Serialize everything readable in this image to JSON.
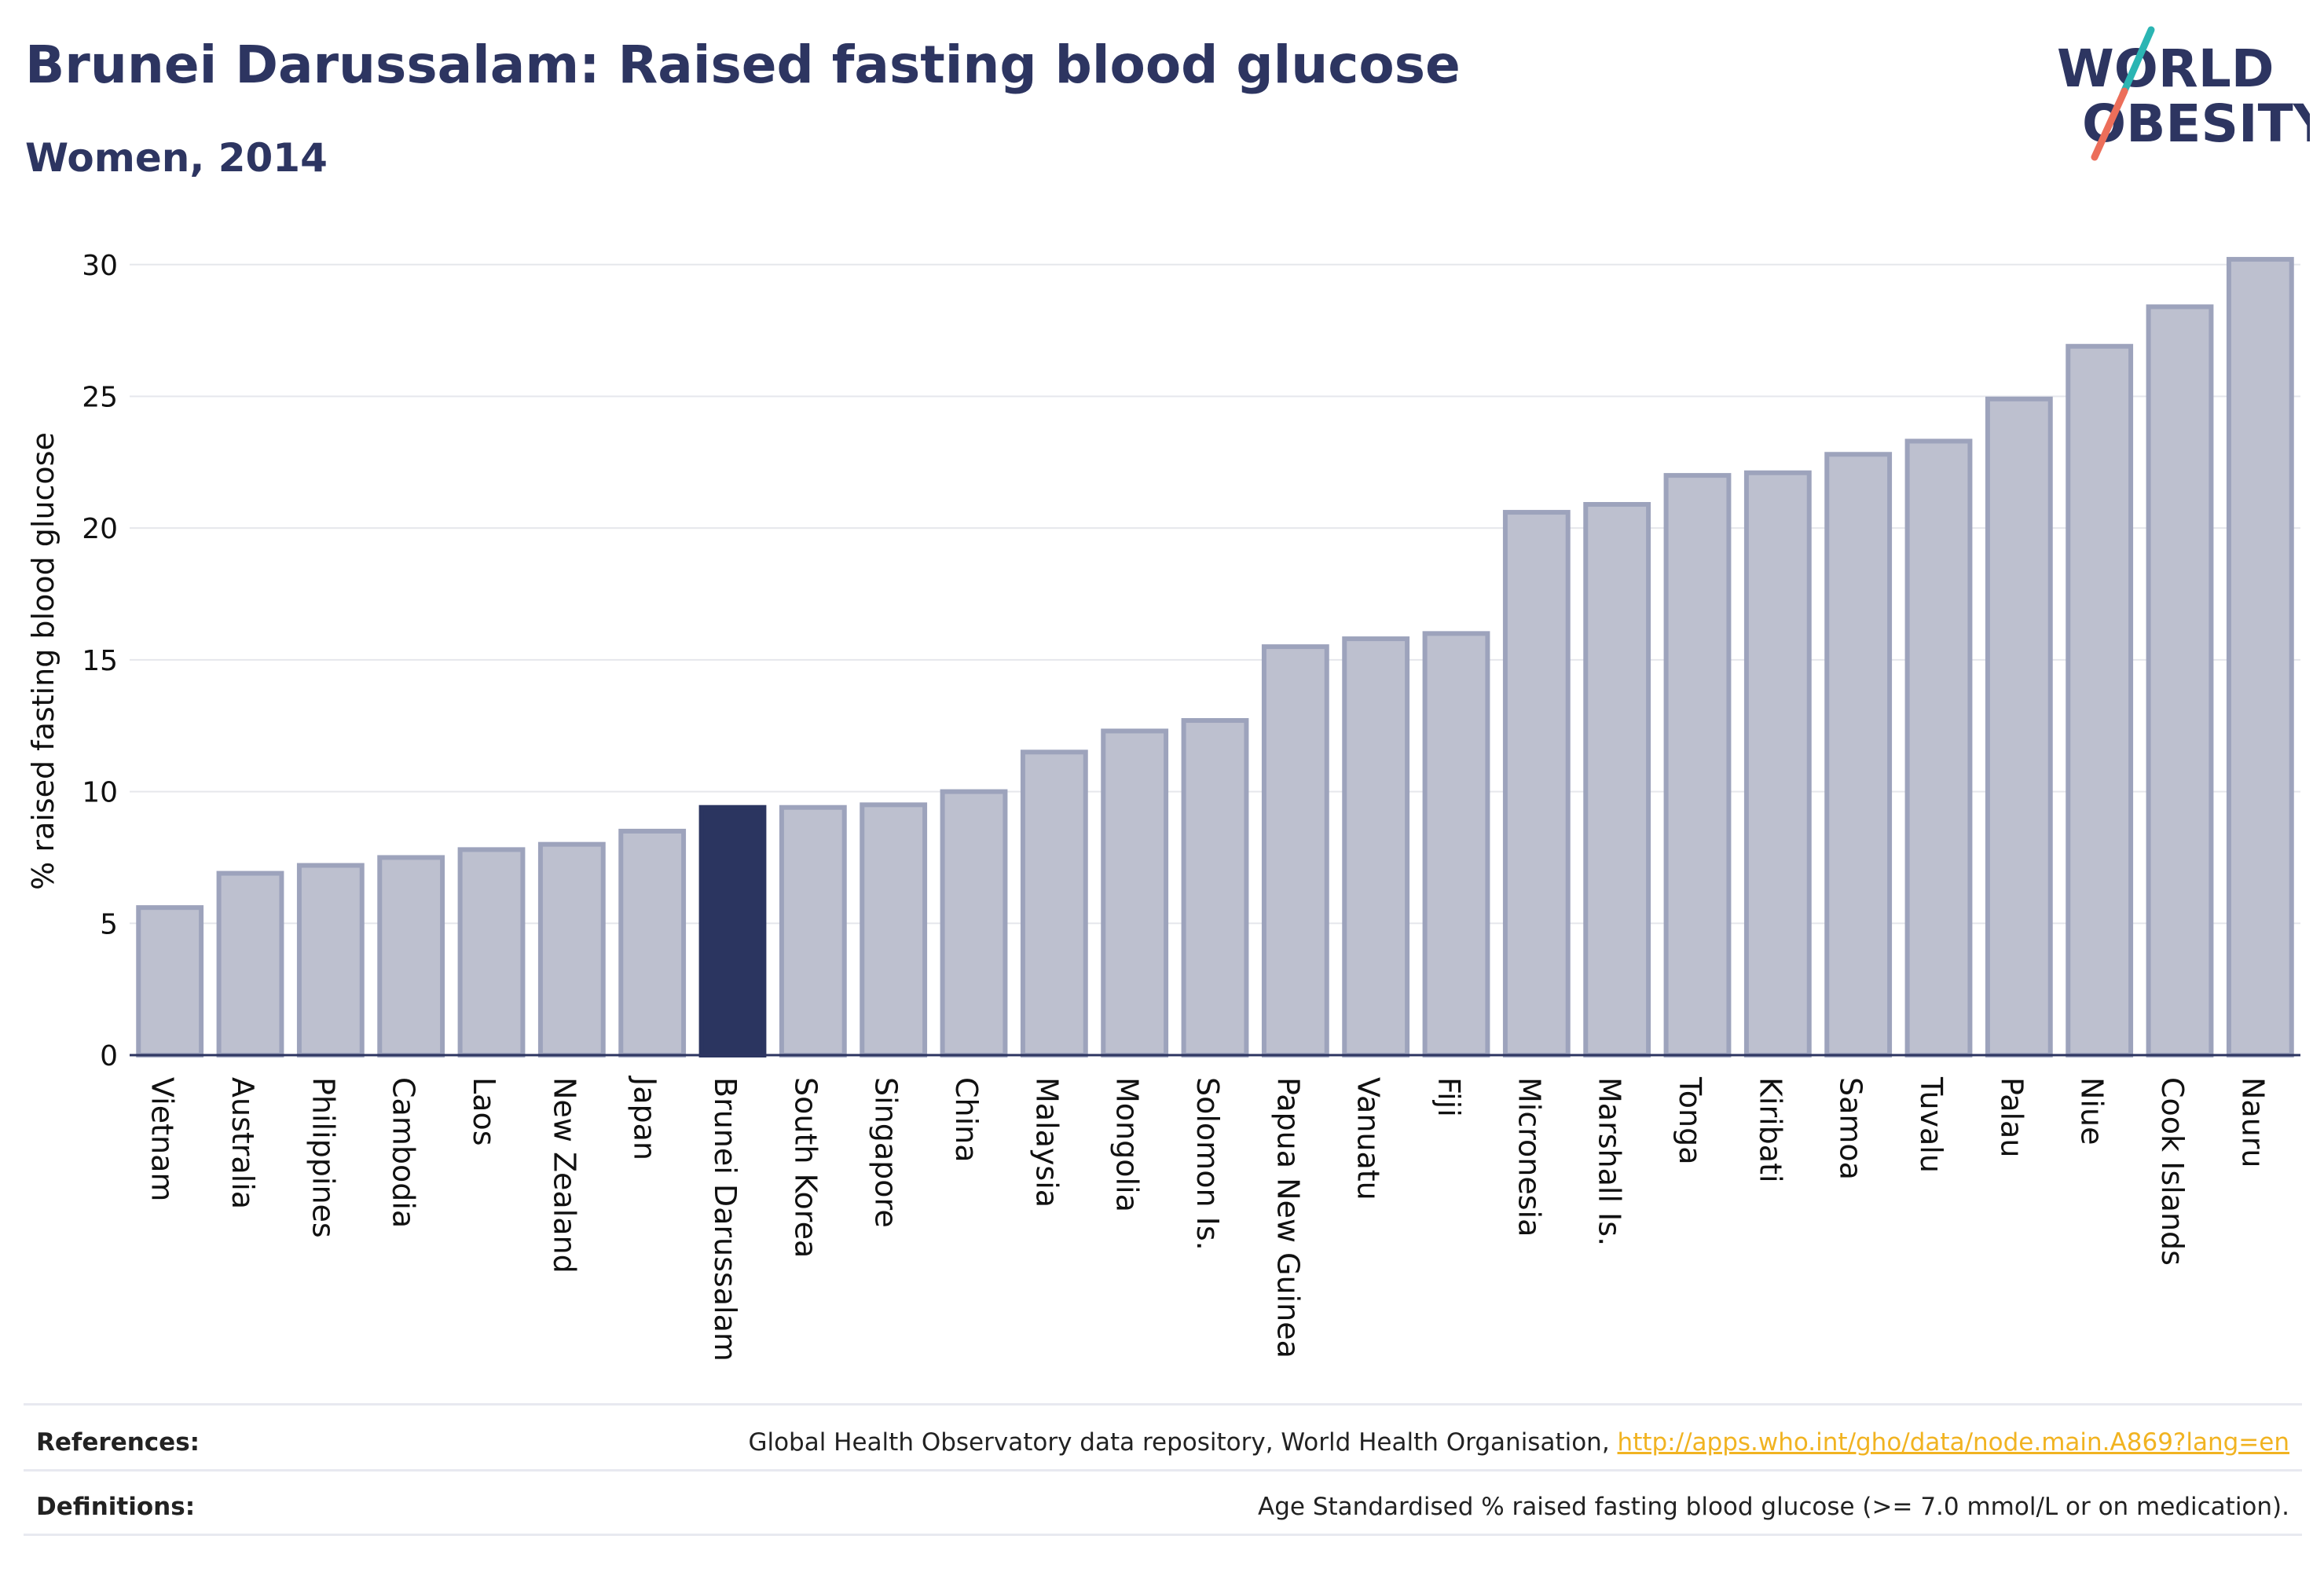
{
  "header": {
    "title": "Brunei Darussalam: Raised fasting blood glucose",
    "subtitle": "Women, 2014"
  },
  "logo": {
    "line1": "WORLD",
    "line2": "OBESITY"
  },
  "colors": {
    "highlight": "#2b3560",
    "bar_fill": "#bdc0cf",
    "bar_stroke": "#9da3bc",
    "grid": "#e6e7ec",
    "logo_text": "#2d3561",
    "logo_teal": "#2bb5b3",
    "logo_coral": "#ec6e5a",
    "link": "#f1b321"
  },
  "chart_data": {
    "type": "bar",
    "ylabel": "% raised fasting blood glucose",
    "ylim": [
      0,
      30.5
    ],
    "yticks": [
      0,
      5,
      10,
      15,
      20,
      25,
      30
    ],
    "grid": true,
    "highlight": "Brunei Darussalam",
    "categories": [
      "Vietnam",
      "Australia",
      "Philippines",
      "Cambodia",
      "Laos",
      "New Zealand",
      "Japan",
      "Brunei Darussalam",
      "South Korea",
      "Singapore",
      "China",
      "Malaysia",
      "Mongolia",
      "Solomon Is.",
      "Papua New Guinea",
      "Vanuatu",
      "Fiji",
      "Micronesia",
      "Marshall Is.",
      "Tonga",
      "Kiribati",
      "Samoa",
      "Tuvalu",
      "Palau",
      "Niue",
      "Cook Islands",
      "Nauru"
    ],
    "values": [
      5.6,
      6.9,
      7.2,
      7.5,
      7.8,
      8.0,
      8.5,
      9.4,
      9.4,
      9.5,
      10.0,
      11.5,
      12.3,
      12.7,
      15.5,
      15.8,
      16.0,
      20.6,
      20.9,
      22.0,
      22.1,
      22.8,
      23.3,
      24.9,
      26.9,
      28.4,
      30.2
    ]
  },
  "footer": {
    "references_label": "References:",
    "references_text": "Global Health Observatory data repository, World Health Organisation, ",
    "references_link": "http://apps.who.int/gho/data/node.main.A869?lang=en",
    "definitions_label": "Definitions:",
    "definitions_text": "Age Standardised % raised fasting blood glucose (>= 7.0 mmol/L or on medication)."
  }
}
